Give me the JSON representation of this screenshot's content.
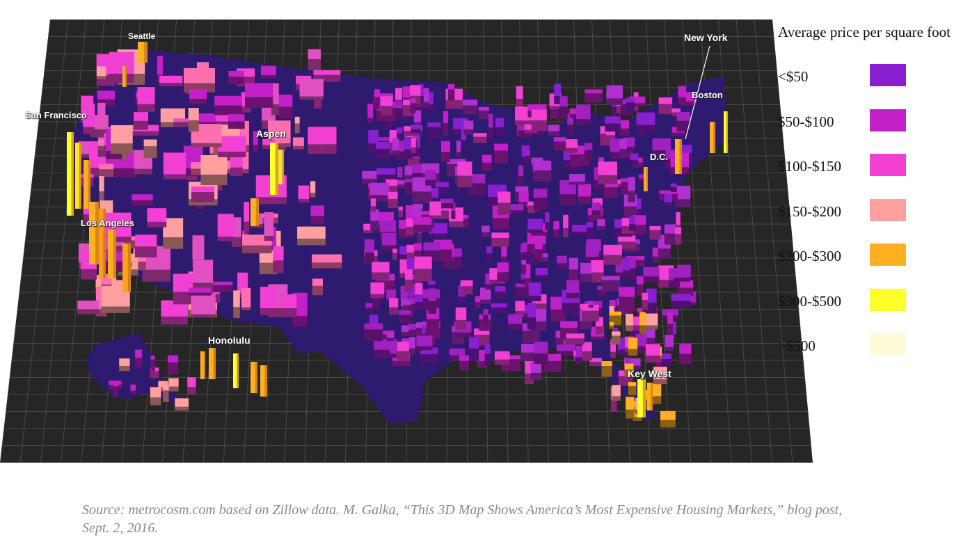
{
  "legend": {
    "title": "Average price per square foot",
    "items": [
      {
        "label": "<$50",
        "color": "#8a1fd0"
      },
      {
        "label": "$50-$100",
        "color": "#c220c8"
      },
      {
        "label": "$100-$150",
        "color": "#f23fd4"
      },
      {
        "label": "$150-$200",
        "color": "#ff9f9f"
      },
      {
        "label": "$200-$300",
        "color": "#ffb020"
      },
      {
        "label": "$300-$500",
        "color": "#ffff2a"
      },
      {
        "label": ">$500",
        "color": "#fffbd8"
      }
    ]
  },
  "cities": {
    "seattle": "Seattle",
    "new_york": "New York",
    "boston": "Boston",
    "san_francisco": "San Francisco",
    "aspen": "Aspen",
    "dc": "D.C.",
    "los_angeles": "Los Angeles",
    "honolulu": "Honolulu",
    "key_west": "Key West"
  },
  "source": "Source: metrocosm.com based on Zillow data. M. Galka, “This 3D Map Shows America’s Most Expensive Housing Markets,” blog post, Sept. 2, 2016.",
  "colors": {
    "background": "#262626",
    "land": "#2e1a6e",
    "grid": "#4a4a4a"
  }
}
